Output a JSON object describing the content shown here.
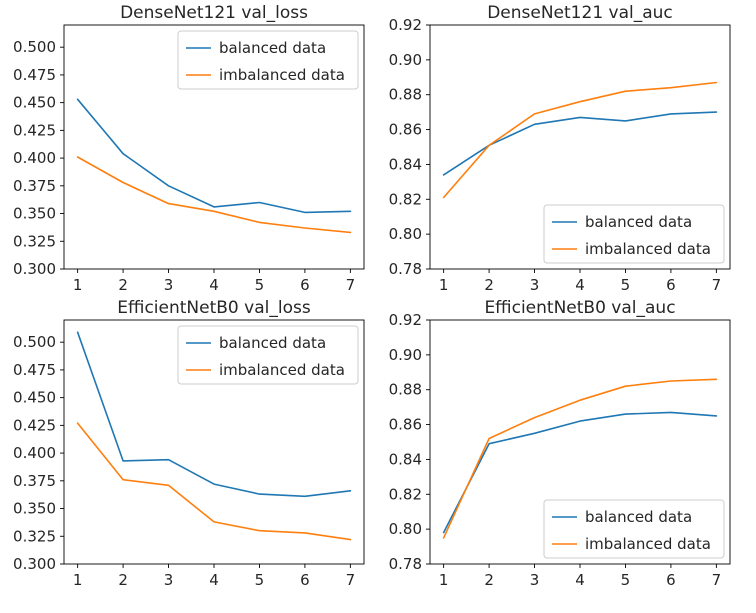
{
  "chart_data": [
    {
      "type": "line",
      "title": "DenseNet121 val_loss",
      "xlabel": "",
      "ylabel": "",
      "x": [
        1,
        2,
        3,
        4,
        5,
        6,
        7
      ],
      "x_ticks": [
        "1",
        "2",
        "3",
        "4",
        "5",
        "6",
        "7"
      ],
      "ylim": [
        0.3,
        0.52
      ],
      "y_ticks": [
        "0.300",
        "0.325",
        "0.350",
        "0.375",
        "0.400",
        "0.425",
        "0.450",
        "0.475",
        "0.500"
      ],
      "grid": false,
      "legend_position": "top-right",
      "series": [
        {
          "name": "balanced data",
          "color": "#1f77b4",
          "values": [
            0.453,
            0.404,
            0.375,
            0.356,
            0.36,
            0.351,
            0.352
          ]
        },
        {
          "name": "imbalanced data",
          "color": "#ff7f0e",
          "values": [
            0.401,
            0.378,
            0.359,
            0.352,
            0.342,
            0.337,
            0.333
          ]
        }
      ]
    },
    {
      "type": "line",
      "title": "DenseNet121 val_auc",
      "xlabel": "",
      "ylabel": "",
      "x": [
        1,
        2,
        3,
        4,
        5,
        6,
        7
      ],
      "x_ticks": [
        "1",
        "2",
        "3",
        "4",
        "5",
        "6",
        "7"
      ],
      "ylim": [
        0.78,
        0.92
      ],
      "y_ticks": [
        "0.78",
        "0.80",
        "0.82",
        "0.84",
        "0.86",
        "0.88",
        "0.90",
        "0.92"
      ],
      "grid": false,
      "legend_position": "bottom-right",
      "series": [
        {
          "name": "balanced data",
          "color": "#1f77b4",
          "values": [
            0.834,
            0.851,
            0.863,
            0.867,
            0.865,
            0.869,
            0.87
          ]
        },
        {
          "name": "imbalanced data",
          "color": "#ff7f0e",
          "values": [
            0.821,
            0.851,
            0.869,
            0.876,
            0.882,
            0.884,
            0.887
          ]
        }
      ]
    },
    {
      "type": "line",
      "title": "EfficientNetB0 val_loss",
      "xlabel": "",
      "ylabel": "",
      "x": [
        1,
        2,
        3,
        4,
        5,
        6,
        7
      ],
      "x_ticks": [
        "1",
        "2",
        "3",
        "4",
        "5",
        "6",
        "7"
      ],
      "ylim": [
        0.3,
        0.52
      ],
      "y_ticks": [
        "0.300",
        "0.325",
        "0.350",
        "0.375",
        "0.400",
        "0.425",
        "0.450",
        "0.475",
        "0.500"
      ],
      "grid": false,
      "legend_position": "top-right",
      "series": [
        {
          "name": "balanced data",
          "color": "#1f77b4",
          "values": [
            0.509,
            0.393,
            0.394,
            0.372,
            0.363,
            0.361,
            0.366
          ]
        },
        {
          "name": "imbalanced data",
          "color": "#ff7f0e",
          "values": [
            0.427,
            0.376,
            0.371,
            0.338,
            0.33,
            0.328,
            0.322
          ]
        }
      ]
    },
    {
      "type": "line",
      "title": "EfficientNetB0 val_auc",
      "xlabel": "",
      "ylabel": "",
      "x": [
        1,
        2,
        3,
        4,
        5,
        6,
        7
      ],
      "x_ticks": [
        "1",
        "2",
        "3",
        "4",
        "5",
        "6",
        "7"
      ],
      "ylim": [
        0.78,
        0.92
      ],
      "y_ticks": [
        "0.78",
        "0.80",
        "0.82",
        "0.84",
        "0.86",
        "0.88",
        "0.90",
        "0.92"
      ],
      "grid": false,
      "legend_position": "bottom-right",
      "series": [
        {
          "name": "balanced data",
          "color": "#1f77b4",
          "values": [
            0.798,
            0.849,
            0.855,
            0.862,
            0.866,
            0.867,
            0.865
          ]
        },
        {
          "name": "imbalanced data",
          "color": "#ff7f0e",
          "values": [
            0.795,
            0.852,
            0.864,
            0.874,
            0.882,
            0.885,
            0.886
          ]
        }
      ]
    }
  ]
}
